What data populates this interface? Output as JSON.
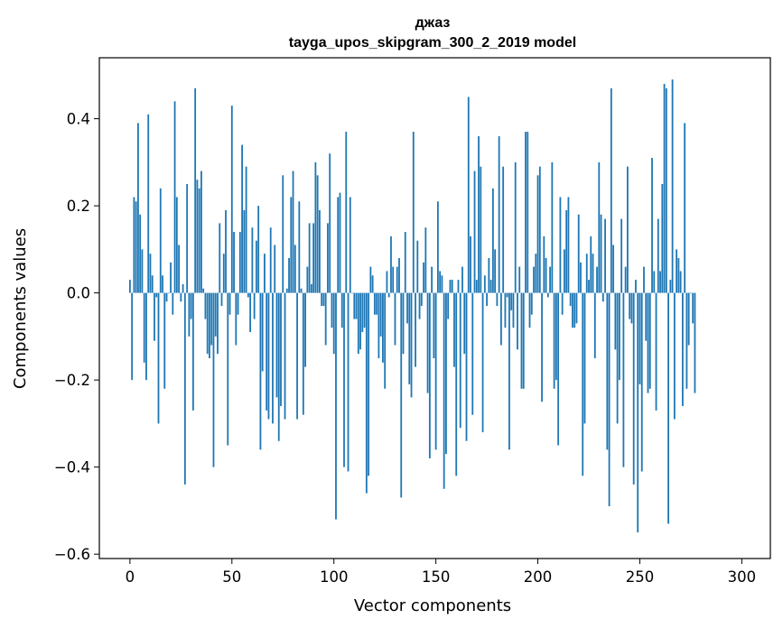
{
  "chart_data": {
    "type": "bar",
    "title": "джаз",
    "subtitle": "tayga_upos_skipgram_300_2_2019 model",
    "xlabel": "Vector components",
    "ylabel": "Components values",
    "xlim": [
      -15,
      314
    ],
    "ylim": [
      -0.61,
      0.54
    ],
    "xticks": [
      0,
      50,
      100,
      150,
      200,
      250,
      300
    ],
    "xtick_labels": [
      "0",
      "50",
      "100",
      "150",
      "200",
      "250",
      "300"
    ],
    "yticks": [
      -0.6,
      -0.4,
      -0.2,
      0.0,
      0.2,
      0.4
    ],
    "ytick_labels": [
      "−0.6",
      "−0.4",
      "−0.2",
      "0.0",
      "0.2",
      "0.4"
    ],
    "bar_color": "#1f77b4",
    "grid": false,
    "legend": "none",
    "series": [
      {
        "values": [
          0.03,
          -0.2,
          0.22,
          0.21,
          0.39,
          0.18,
          0.1,
          -0.16,
          -0.2,
          0.41,
          0.09,
          0.04,
          -0.11,
          -0.01,
          -0.3,
          0.24,
          0.04,
          -0.22,
          -0.02,
          0.0,
          0.07,
          -0.05,
          0.44,
          0.22,
          0.11,
          -0.02,
          0.02,
          -0.44,
          0.25,
          -0.1,
          -0.06,
          -0.27,
          0.47,
          0.26,
          0.24,
          0.28,
          0.01,
          -0.06,
          -0.14,
          -0.15,
          -0.12,
          -0.4,
          -0.1,
          -0.14,
          0.16,
          -0.03,
          0.09,
          0.19,
          -0.35,
          -0.05,
          0.43,
          0.14,
          -0.12,
          -0.05,
          0.14,
          0.34,
          0.19,
          0.29,
          -0.01,
          -0.09,
          0.15,
          -0.06,
          0.12,
          0.2,
          -0.36,
          -0.18,
          0.09,
          -0.27,
          -0.29,
          0.15,
          -0.3,
          0.11,
          -0.24,
          -0.34,
          -0.26,
          0.27,
          -0.29,
          0.01,
          0.08,
          0.22,
          0.28,
          0.11,
          -0.29,
          0.21,
          0.01,
          -0.28,
          -0.17,
          0.06,
          0.16,
          0.02,
          0.16,
          0.3,
          0.27,
          0.19,
          -0.03,
          -0.03,
          -0.12,
          0.16,
          0.32,
          -0.08,
          -0.14,
          -0.52,
          0.22,
          0.23,
          -0.08,
          -0.4,
          0.37,
          -0.41,
          0.22,
          0.0,
          -0.06,
          -0.06,
          -0.14,
          -0.13,
          -0.09,
          -0.08,
          -0.46,
          -0.42,
          0.06,
          0.04,
          -0.05,
          -0.05,
          -0.15,
          -0.1,
          -0.16,
          -0.22,
          0.05,
          -0.01,
          0.13,
          0.06,
          -0.12,
          0.06,
          0.08,
          -0.47,
          -0.14,
          0.14,
          -0.07,
          -0.21,
          -0.24,
          0.37,
          -0.17,
          0.12,
          -0.06,
          -0.03,
          0.07,
          0.15,
          -0.23,
          -0.38,
          0.06,
          -0.15,
          -0.36,
          0.21,
          0.05,
          0.04,
          -0.45,
          -0.37,
          -0.06,
          0.03,
          0.03,
          -0.17,
          -0.42,
          0.03,
          -0.31,
          0.06,
          -0.14,
          -0.34,
          0.45,
          0.13,
          -0.28,
          0.28,
          0.03,
          0.36,
          0.29,
          -0.32,
          0.04,
          -0.03,
          0.08,
          0.03,
          0.24,
          0.1,
          -0.03,
          0.36,
          -0.12,
          0.29,
          -0.08,
          -0.01,
          -0.36,
          -0.04,
          -0.08,
          0.3,
          -0.13,
          0.06,
          -0.22,
          -0.22,
          0.37,
          0.37,
          -0.08,
          -0.05,
          0.06,
          0.09,
          0.27,
          0.29,
          -0.25,
          0.13,
          0.08,
          -0.01,
          0.06,
          0.3,
          -0.22,
          -0.2,
          -0.35,
          0.22,
          -0.05,
          0.1,
          0.19,
          0.22,
          -0.03,
          -0.08,
          -0.08,
          -0.07,
          0.18,
          0.07,
          -0.42,
          -0.3,
          0.09,
          0.03,
          0.13,
          0.09,
          -0.15,
          0.06,
          0.3,
          0.18,
          -0.02,
          0.17,
          -0.36,
          -0.49,
          0.47,
          0.11,
          -0.13,
          -0.3,
          -0.2,
          0.17,
          -0.4,
          0.06,
          0.29,
          -0.06,
          -0.07,
          -0.44,
          0.03,
          -0.55,
          -0.21,
          -0.41,
          0.06,
          -0.11,
          -0.23,
          -0.22,
          0.31,
          0.05,
          -0.27,
          0.17,
          0.05,
          0.25,
          0.48,
          0.47,
          -0.53,
          0.03,
          0.49,
          -0.29,
          0.1,
          0.08,
          0.05,
          -0.26,
          0.39,
          -0.22,
          -0.12,
          0.0,
          -0.07,
          -0.23
        ]
      }
    ]
  }
}
